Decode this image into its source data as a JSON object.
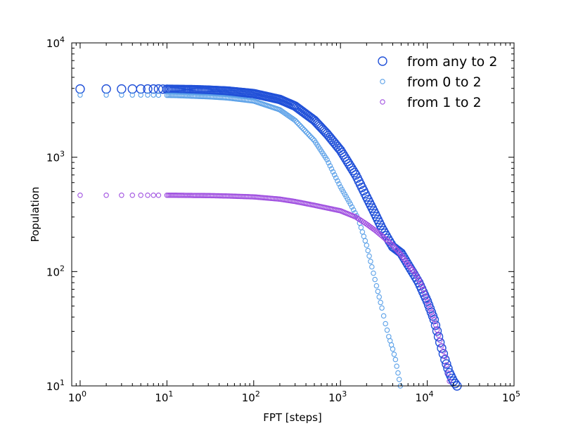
{
  "chart_data": {
    "type": "scatter",
    "xscale": "log",
    "yscale": "log",
    "xlabel": "FPT [steps]",
    "ylabel": "Population",
    "xlim": [
      0.8,
      100000
    ],
    "ylim": [
      10,
      10000
    ],
    "x_ticks": [
      {
        "value": 1,
        "base": "10",
        "exp": "0"
      },
      {
        "value": 10,
        "base": "10",
        "exp": "1"
      },
      {
        "value": 100,
        "base": "10",
        "exp": "2"
      },
      {
        "value": 1000,
        "base": "10",
        "exp": "3"
      },
      {
        "value": 10000,
        "base": "10",
        "exp": "4"
      },
      {
        "value": 100000,
        "base": "10",
        "exp": "5"
      }
    ],
    "y_ticks": [
      {
        "value": 10,
        "base": "10",
        "exp": "1"
      },
      {
        "value": 100,
        "base": "10",
        "exp": "2"
      },
      {
        "value": 1000,
        "base": "10",
        "exp": "3"
      },
      {
        "value": 10000,
        "base": "10",
        "exp": "4"
      }
    ],
    "legend_position": "top-right",
    "series": [
      {
        "name": "from any to 2",
        "color": "#2050d8",
        "marker_size": "large",
        "x": [
          1,
          2,
          3,
          4,
          5,
          6,
          7,
          8,
          9,
          10,
          12,
          15,
          20,
          30,
          50,
          100,
          200,
          300,
          500,
          700,
          1000,
          1500,
          2000,
          2500,
          3000,
          3500,
          4000,
          5000,
          6000,
          7000,
          8000,
          10000,
          12000,
          14000,
          16000,
          18000,
          20000,
          22000
        ],
        "y": [
          3950,
          3950,
          3950,
          3950,
          3950,
          3950,
          3950,
          3950,
          3940,
          3930,
          3920,
          3910,
          3900,
          3860,
          3790,
          3600,
          3200,
          2800,
          2100,
          1600,
          1150,
          700,
          450,
          320,
          240,
          195,
          165,
          145,
          115,
          95,
          80,
          55,
          38,
          24,
          17,
          13,
          11,
          10
        ]
      },
      {
        "name": "from 0 to 2",
        "color": "#5aa0e8",
        "marker_size": "small",
        "x": [
          1,
          2,
          3,
          4,
          5,
          6,
          7,
          8,
          10,
          12,
          15,
          20,
          30,
          50,
          100,
          200,
          300,
          500,
          700,
          1000,
          1300,
          1600,
          2000,
          2300,
          2600,
          3000,
          3300,
          3600,
          4000,
          4300,
          4600,
          4900
        ],
        "y": [
          3500,
          3500,
          3500,
          3500,
          3500,
          3500,
          3500,
          3490,
          3480,
          3470,
          3450,
          3420,
          3380,
          3300,
          3100,
          2600,
          2100,
          1400,
          950,
          550,
          390,
          290,
          170,
          110,
          75,
          48,
          35,
          27,
          21,
          17,
          13,
          10
        ]
      },
      {
        "name": "from 1 to 2",
        "color": "#a050e0",
        "marker_size": "small",
        "x": [
          1,
          2,
          3,
          4,
          5,
          6,
          7,
          8,
          10,
          12,
          15,
          20,
          30,
          50,
          100,
          200,
          300,
          500,
          700,
          1000,
          1500,
          2000,
          2500,
          3000,
          4000,
          5000,
          6000,
          7000,
          8000,
          9000,
          10000,
          12000,
          14000,
          16000,
          18000
        ],
        "y": [
          465,
          465,
          465,
          465,
          465,
          465,
          465,
          465,
          465,
          465,
          464,
          463,
          462,
          458,
          450,
          430,
          410,
          380,
          360,
          340,
          300,
          260,
          230,
          205,
          170,
          140,
          115,
          100,
          85,
          70,
          55,
          38,
          25,
          18,
          11
        ]
      }
    ]
  }
}
